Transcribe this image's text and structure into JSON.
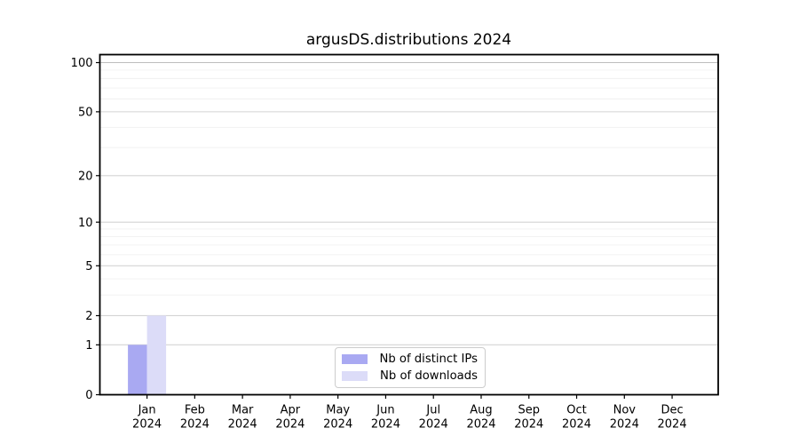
{
  "chart_data": {
    "type": "bar",
    "title": "argusDS.distributions 2024",
    "categories": [
      "Jan 2024",
      "Feb 2024",
      "Mar 2024",
      "Apr 2024",
      "May 2024",
      "Jun 2024",
      "Jul 2024",
      "Aug 2024",
      "Sep 2024",
      "Oct 2024",
      "Nov 2024",
      "Dec 2024"
    ],
    "series": [
      {
        "name": "Nb of distinct IPs",
        "color": "#a9a9f2",
        "values": [
          1,
          0,
          0,
          0,
          0,
          0,
          0,
          0,
          0,
          0,
          0,
          0
        ]
      },
      {
        "name": "Nb of downloads",
        "color": "#dcdcf8",
        "values": [
          2,
          0,
          0,
          0,
          0,
          0,
          0,
          0,
          0,
          0,
          0,
          0
        ]
      }
    ],
    "xlabel": "",
    "ylabel": "",
    "y_scale": "log1p (symlog-like: position = log10(1+value))",
    "y_ticks": [
      0,
      1,
      2,
      5,
      10,
      20,
      50,
      100
    ],
    "y_minor_gridlines": [
      3,
      4,
      6,
      7,
      8,
      9,
      30,
      40,
      60,
      70,
      80,
      90
    ],
    "ylim": [
      0,
      112
    ],
    "grid": "horizontal major + minor",
    "legend_position": "inside plot, lower center"
  },
  "colors": {
    "background": "#ffffff",
    "spine": "#000000",
    "major_grid": "#d4d4d4",
    "top_major_grid": "#bdbdbd",
    "minor_grid": "#f0f0f0",
    "tick": "#000000",
    "text": "#000000",
    "legend_border": "#cccccc"
  }
}
